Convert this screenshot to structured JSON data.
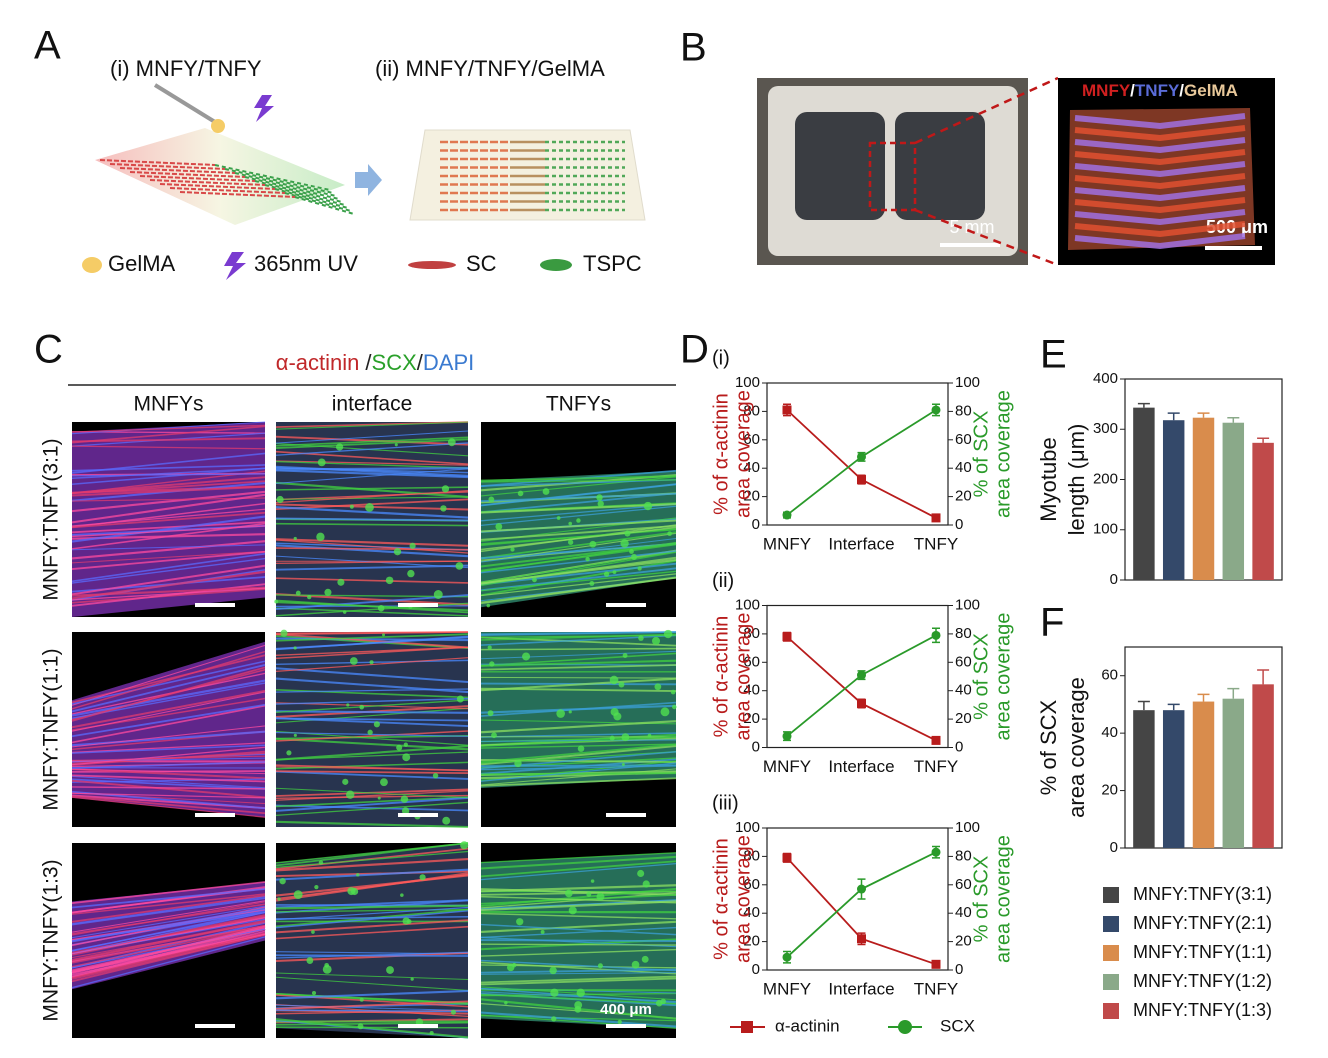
{
  "panel_a": {
    "letter": "A",
    "step1": "(i)  MNFY/TNFY",
    "step2": "(ii)  MNFY/TNFY/GelMA",
    "legend": [
      "GelMA",
      "365nm UV",
      "SC",
      "TSPC"
    ]
  },
  "panel_b": {
    "letter": "B",
    "scale_photo": "5 mm",
    "scale_confocal": "500 μm",
    "stain_parts": [
      "MNFY",
      "/",
      "TNFY",
      "/",
      "GelMA"
    ],
    "stain_colors": [
      "#d02020",
      "#ffffff",
      "#5a6cd8",
      "#ffffff",
      "#e8c89a"
    ]
  },
  "panel_c": {
    "letter": "C",
    "stain_parts": [
      "α-actinin",
      "/",
      "SCX",
      "/",
      "DAPI"
    ],
    "stain_colors": [
      "#c0282a",
      "#222222",
      "#2aa02a",
      "#222222",
      "#3a7ad0"
    ],
    "columns": [
      "MNFYs",
      "interface",
      "TNFYs"
    ],
    "rows": [
      "MNFY:TNFY(3:1)",
      "MNFY:TNFY(1:1)",
      "MNFY:TNFY(1:3)"
    ],
    "scale": "400 μm"
  },
  "bar_legend": {
    "labels": [
      "MNFY:TNFY(3:1)",
      "MNFY:TNFY(2:1)",
      "MNFY:TNFY(1:1)",
      "MNFY:TNFY(1:2)",
      "MNFY:TNFY(1:3)"
    ],
    "colors": [
      "#454545",
      "#34496a",
      "#d98c4c",
      "#8aa989",
      "#c04a4a"
    ]
  },
  "chart_data": [
    {
      "type": "line",
      "panel": "D",
      "title": "(i)",
      "categories": [
        "MNFY",
        "Interface",
        "TNFY"
      ],
      "y_label": [
        "% of α-actinin",
        "area coverage"
      ],
      "y2_label": [
        "% of SCX",
        "area coverage"
      ],
      "ylim": [
        0,
        100
      ],
      "yticks": [
        0,
        20,
        40,
        60,
        80,
        100
      ],
      "y2lim": [
        0,
        100
      ],
      "y2ticks": [
        0,
        20,
        40,
        60,
        80,
        100
      ],
      "series": [
        {
          "color": "#b81c1c",
          "marker": "square",
          "values": [
            81,
            32,
            5
          ],
          "errors": [
            4,
            3,
            2
          ]
        },
        {
          "color": "#2a9a2a",
          "marker": "circle",
          "axis": "y2",
          "values": [
            7,
            48,
            81
          ],
          "errors": [
            2,
            3,
            4
          ]
        }
      ]
    },
    {
      "type": "line",
      "title": "(ii)",
      "categories": [
        "MNFY",
        "Interface",
        "TNFY"
      ],
      "y_label": [
        "% of α-actinin",
        "area coverage"
      ],
      "y2_label": [
        "% of SCX",
        "area coverage"
      ],
      "ylim": [
        0,
        100
      ],
      "yticks": [
        0,
        20,
        40,
        60,
        80,
        100
      ],
      "y2lim": [
        0,
        100
      ],
      "y2ticks": [
        0,
        20,
        40,
        60,
        80,
        100
      ],
      "series": [
        {
          "color": "#b81c1c",
          "marker": "square",
          "values": [
            78,
            31,
            5
          ],
          "errors": [
            3,
            3,
            1
          ]
        },
        {
          "color": "#2a9a2a",
          "marker": "circle",
          "axis": "y2",
          "values": [
            8,
            51,
            79
          ],
          "errors": [
            3,
            3,
            5
          ]
        }
      ]
    },
    {
      "type": "line",
      "title": "(iii)",
      "categories": [
        "MNFY",
        "Interface",
        "TNFY"
      ],
      "y_label": [
        "% of α-actinin",
        "area coverage"
      ],
      "y2_label": [
        "% of SCX",
        "area coverage"
      ],
      "ylim": [
        0,
        100
      ],
      "yticks": [
        0,
        20,
        40,
        60,
        80,
        100
      ],
      "y2lim": [
        0,
        100
      ],
      "y2ticks": [
        0,
        20,
        40,
        60,
        80,
        100
      ],
      "series": [
        {
          "name": "α-actinin",
          "color": "#b81c1c",
          "marker": "square",
          "values": [
            79,
            22,
            4
          ],
          "errors": [
            3,
            4,
            2
          ]
        },
        {
          "name": "SCX",
          "color": "#2a9a2a",
          "marker": "circle",
          "axis": "y2",
          "values": [
            9,
            57,
            83
          ],
          "errors": [
            4,
            7,
            4
          ]
        }
      ]
    },
    {
      "type": "bar",
      "panel": "E",
      "y_label": [
        "Myotube",
        "length (μm)"
      ],
      "ylim": [
        0,
        400
      ],
      "yticks": [
        0,
        100,
        200,
        300,
        400
      ],
      "values": [
        343,
        318,
        323,
        313,
        273
      ],
      "errors": [
        8,
        14,
        9,
        10,
        9
      ]
    },
    {
      "type": "bar",
      "panel": "F",
      "y_label": [
        "% of SCX",
        "area coverage"
      ],
      "ylim": [
        0,
        70
      ],
      "yticks": [
        0,
        20,
        40,
        60
      ],
      "values": [
        48,
        48,
        51,
        52,
        57
      ],
      "errors": [
        3,
        2,
        2.5,
        3.5,
        5
      ]
    }
  ]
}
